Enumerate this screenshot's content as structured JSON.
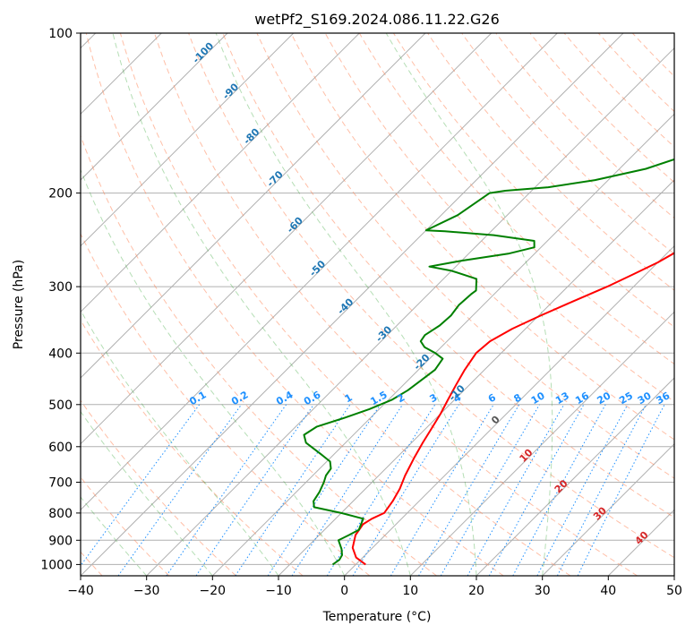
{
  "chart_data": {
    "type": "line",
    "title": "wetPf2_S169.2024.086.11.22.G26",
    "xlabel": "Temperature (°C)",
    "ylabel": "Pressure (hPa)",
    "xlim": [
      -40,
      50
    ],
    "ylim": [
      1050,
      100
    ],
    "y_scale": "log",
    "x_ticks": [
      -40,
      -30,
      -20,
      -10,
      0,
      10,
      20,
      30,
      40,
      50
    ],
    "y_ticks": [
      100,
      200,
      300,
      400,
      500,
      600,
      700,
      800,
      900,
      1000
    ],
    "grid": true,
    "colors": {
      "temperature": "#ff0000",
      "dewpoint": "#008000",
      "dry_adiabat": "#ff7f50",
      "moist_adiabat": "#2ca02c",
      "mixing_ratio": "#1e90ff",
      "isotherm_label": "#1f77b4",
      "grid": "#b0b0b0"
    },
    "series": [
      {
        "points": [
          [
            1.5,
            1000
          ],
          [
            -1,
            970
          ],
          [
            -3,
            930
          ],
          [
            -4.5,
            880
          ],
          [
            -5,
            840
          ],
          [
            -4.5,
            820
          ],
          [
            -3.5,
            800
          ],
          [
            -4,
            760
          ],
          [
            -4.8,
            720
          ],
          [
            -6,
            680
          ],
          [
            -7.3,
            630
          ],
          [
            -8.3,
            590
          ],
          [
            -9,
            560
          ],
          [
            -10,
            520
          ],
          [
            -11,
            490
          ],
          [
            -12,
            460
          ],
          [
            -13,
            430
          ],
          [
            -13.8,
            400
          ],
          [
            -13.5,
            380
          ],
          [
            -12,
            360
          ],
          [
            -9.7,
            340
          ],
          [
            -7,
            320
          ],
          [
            -4,
            300
          ],
          [
            -2,
            285
          ],
          [
            0,
            270
          ],
          [
            1.5,
            255
          ],
          [
            3,
            240
          ],
          [
            5.5,
            225
          ],
          [
            7.5,
            210
          ],
          [
            9,
            196
          ],
          [
            10.5,
            180
          ],
          [
            12.3,
            165
          ],
          [
            13.5,
            153
          ],
          [
            16,
            140
          ],
          [
            18,
            130
          ],
          [
            20,
            122
          ],
          [
            24,
            112
          ],
          [
            27,
            103
          ],
          [
            29,
            99
          ]
        ]
      },
      {
        "points": [
          [
            -3.5,
            1000
          ],
          [
            -3.2,
            980
          ],
          [
            -3.5,
            960
          ],
          [
            -4.5,
            935
          ],
          [
            -6.3,
            900
          ],
          [
            -5.5,
            880
          ],
          [
            -4.8,
            860
          ],
          [
            -5.3,
            840
          ],
          [
            -5.8,
            820
          ],
          [
            -10,
            800
          ],
          [
            -15,
            780
          ],
          [
            -16,
            760
          ],
          [
            -16.5,
            730
          ],
          [
            -17.3,
            700
          ],
          [
            -18,
            680
          ],
          [
            -18.3,
            660
          ],
          [
            -19.5,
            640
          ],
          [
            -22,
            620
          ],
          [
            -26,
            590
          ],
          [
            -27.5,
            570
          ],
          [
            -26.8,
            550
          ],
          [
            -24,
            530
          ],
          [
            -21.5,
            510
          ],
          [
            -19.5,
            490
          ],
          [
            -18.5,
            470
          ],
          [
            -18,
            450
          ],
          [
            -17.5,
            430
          ],
          [
            -18,
            410
          ],
          [
            -20,
            400
          ],
          [
            -22.5,
            390
          ],
          [
            -24,
            380
          ],
          [
            -24.3,
            370
          ],
          [
            -23.5,
            355
          ],
          [
            -23.3,
            340
          ],
          [
            -23.7,
            325
          ],
          [
            -23.5,
            310
          ],
          [
            -23.3,
            305
          ],
          [
            -25,
            290
          ],
          [
            -30,
            280
          ],
          [
            -34,
            275
          ],
          [
            -30,
            268
          ],
          [
            -24,
            260
          ],
          [
            -21,
            253
          ],
          [
            -22,
            246
          ],
          [
            -29,
            240
          ],
          [
            -37,
            236
          ],
          [
            -40,
            235
          ],
          [
            -37.5,
            220
          ],
          [
            -36,
            200
          ],
          [
            -34,
            198
          ],
          [
            -28,
            195
          ],
          [
            -22,
            189
          ],
          [
            -16,
            180
          ],
          [
            -12,
            170
          ],
          [
            -11,
            160
          ],
          [
            -11.2,
            150
          ],
          [
            -10.8,
            140
          ],
          [
            -9.8,
            130
          ],
          [
            -7.5,
            120
          ],
          [
            -5,
            113
          ],
          [
            -2,
            106
          ],
          [
            0,
            100
          ]
        ]
      }
    ],
    "dry_adiabat_thetas": [
      -40,
      -30,
      -20,
      -10,
      0,
      10,
      20,
      30,
      40,
      50,
      60,
      70,
      80,
      90,
      100,
      110,
      120,
      130,
      140,
      150,
      160,
      170,
      180
    ],
    "moist_adiabat_surface_temps": [
      -30,
      -20,
      -10,
      0,
      10,
      20,
      30
    ],
    "mixing_ratios": [
      "0.1",
      "0.2",
      "0.4",
      "0.6",
      "1",
      "1.5",
      "2",
      "3",
      "4",
      "6",
      "8",
      "10",
      "13",
      "16",
      "20",
      "25",
      "30",
      "36"
    ],
    "isotherm_labels_blue": [
      "-100",
      "-90",
      "-80",
      "-70",
      "-60",
      "-50",
      "-40",
      "-30",
      "-20",
      "-10"
    ],
    "isotherm_labels_dark": [
      "0"
    ],
    "isotherm_labels_red": [
      "10",
      "20",
      "30",
      "40"
    ]
  }
}
